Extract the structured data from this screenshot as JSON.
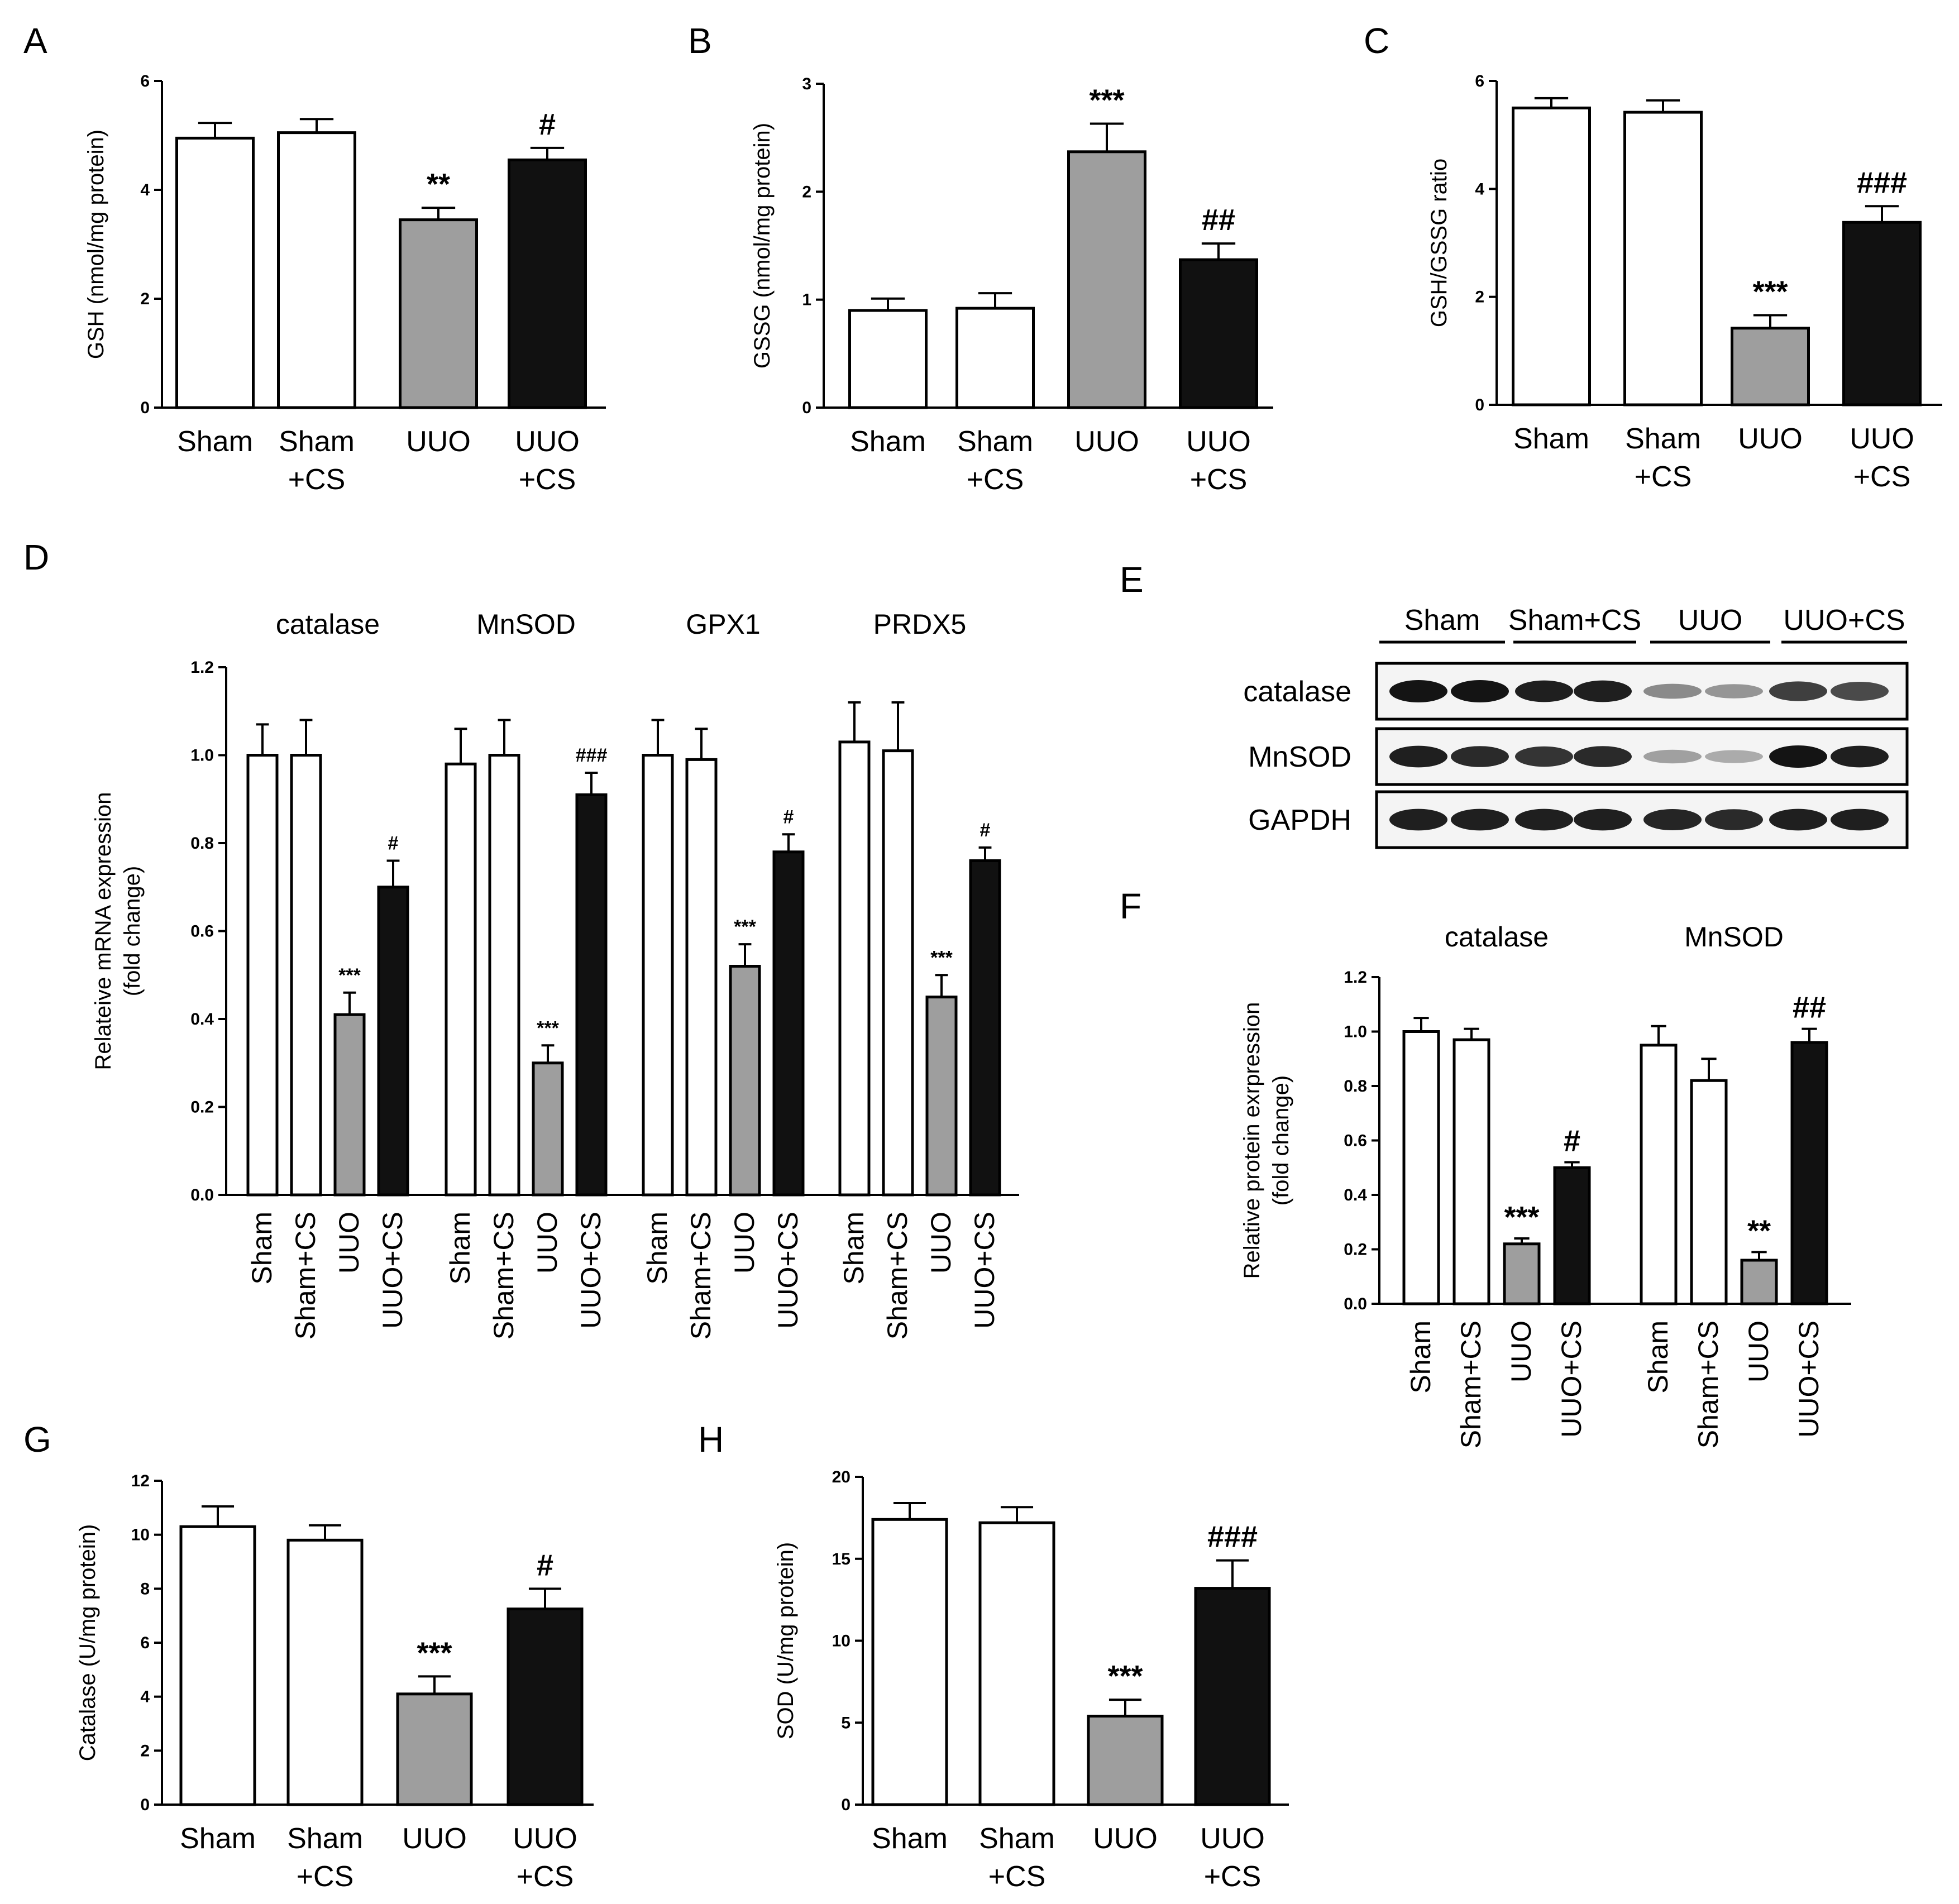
{
  "colors": {
    "Sham": "#ffffff",
    "Sham+CS": "#ffffff",
    "UUO": "#9e9e9e",
    "UUO+CS": "#111111",
    "axis": "#000000"
  },
  "chart_data": [
    {
      "id": "A",
      "letter": "A",
      "type": "bar",
      "categories": [
        "Sham",
        "Sham\n+CS",
        "UUO",
        "UUO\n+CS"
      ],
      "values": [
        4.95,
        5.05,
        3.45,
        4.55
      ],
      "errors": [
        0.28,
        0.25,
        0.22,
        0.22
      ],
      "annotations": [
        "",
        "",
        "**",
        "#"
      ],
      "ylabel": "GSH (nmol/mg protein)",
      "ylim": [
        0,
        6
      ],
      "yticks": [
        "0",
        "2",
        "4",
        "6"
      ]
    },
    {
      "id": "B",
      "letter": "B",
      "type": "bar",
      "categories": [
        "Sham",
        "Sham\n+CS",
        "UUO",
        "UUO\n+CS"
      ],
      "values": [
        0.9,
        0.92,
        2.37,
        1.37
      ],
      "errors": [
        0.11,
        0.14,
        0.26,
        0.15
      ],
      "annotations": [
        "",
        "",
        "***",
        "##"
      ],
      "ylabel": "GSSG (nmol/mg protein)",
      "ylim": [
        0,
        3
      ],
      "yticks": [
        "0",
        "1",
        "2",
        "3"
      ]
    },
    {
      "id": "C",
      "letter": "C",
      "type": "bar",
      "categories": [
        "Sham",
        "Sham\n+CS",
        "UUO",
        "UUO\n+CS"
      ],
      "values": [
        5.5,
        5.42,
        1.42,
        3.38
      ],
      "errors": [
        0.18,
        0.22,
        0.24,
        0.3
      ],
      "annotations": [
        "",
        "",
        "***",
        "###"
      ],
      "ylabel": "GSH/GSSG ratio",
      "ylim": [
        0,
        6
      ],
      "yticks": [
        "0",
        "2",
        "4",
        "6"
      ]
    },
    {
      "id": "D",
      "letter": "D",
      "type": "bar",
      "ylabel": [
        "Relateive mRNA expression",
        "(fold change)"
      ],
      "ylim": [
        0,
        1.2
      ],
      "yticks": [
        "0.0",
        "0.2",
        "0.4",
        "0.6",
        "0.8",
        "1.0",
        "1.2"
      ],
      "categories": [
        "Sham",
        "Sham+CS",
        "UUO",
        "UUO+CS"
      ],
      "groups": [
        {
          "name": "catalase",
          "values": [
            1.0,
            1.0,
            0.41,
            0.7
          ],
          "errors": [
            0.07,
            0.08,
            0.05,
            0.06
          ],
          "annotations": [
            "",
            "",
            "***",
            "#"
          ]
        },
        {
          "name": "MnSOD",
          "values": [
            0.98,
            1.0,
            0.3,
            0.91
          ],
          "errors": [
            0.08,
            0.08,
            0.04,
            0.05
          ],
          "annotations": [
            "",
            "",
            "***",
            "###"
          ]
        },
        {
          "name": "GPX1",
          "values": [
            1.0,
            0.99,
            0.52,
            0.78
          ],
          "errors": [
            0.08,
            0.07,
            0.05,
            0.04
          ],
          "annotations": [
            "",
            "",
            "***",
            "#"
          ]
        },
        {
          "name": "PRDX5",
          "values": [
            1.03,
            1.01,
            0.45,
            0.76
          ],
          "errors": [
            0.09,
            0.11,
            0.05,
            0.03
          ],
          "annotations": [
            "",
            "",
            "***",
            "#"
          ]
        }
      ]
    },
    {
      "id": "F",
      "letter": "F",
      "type": "bar",
      "ylabel": [
        "Relative protein exrpression",
        "(fold change)"
      ],
      "ylim": [
        0,
        1.2
      ],
      "yticks": [
        "0.0",
        "0.2",
        "0.4",
        "0.6",
        "0.8",
        "1.0",
        "1.2"
      ],
      "categories": [
        "Sham",
        "Sham+CS",
        "UUO",
        "UUO+CS"
      ],
      "groups": [
        {
          "name": "catalase",
          "values": [
            1.0,
            0.97,
            0.22,
            0.5
          ],
          "errors": [
            0.05,
            0.04,
            0.02,
            0.02
          ],
          "annotations": [
            "",
            "",
            "***",
            "#"
          ]
        },
        {
          "name": "MnSOD",
          "values": [
            0.95,
            0.82,
            0.16,
            0.96
          ],
          "errors": [
            0.07,
            0.08,
            0.03,
            0.05
          ],
          "annotations": [
            "",
            "",
            "**",
            "##"
          ]
        }
      ]
    },
    {
      "id": "G",
      "letter": "G",
      "type": "bar",
      "categories": [
        "Sham",
        "Sham\n+CS",
        "UUO",
        "UUO\n+CS"
      ],
      "values": [
        10.3,
        9.8,
        4.1,
        7.25
      ],
      "errors": [
        0.75,
        0.55,
        0.65,
        0.75
      ],
      "annotations": [
        "",
        "",
        "***",
        "#"
      ],
      "ylabel": "Catalase (U/mg protein)",
      "ylim": [
        0,
        12
      ],
      "yticks": [
        "0",
        "2",
        "4",
        "6",
        "8",
        "10",
        "12"
      ]
    },
    {
      "id": "H",
      "letter": "H",
      "type": "bar",
      "categories": [
        "Sham",
        "Sham\n+CS",
        "UUO",
        "UUO\n+CS"
      ],
      "values": [
        17.4,
        17.2,
        5.4,
        13.2
      ],
      "errors": [
        1.0,
        0.95,
        1.0,
        1.7
      ],
      "annotations": [
        "",
        "",
        "***",
        "###"
      ],
      "ylabel": "SOD (U/mg protein)",
      "ylim": [
        0,
        20
      ],
      "yticks": [
        "0",
        "5",
        "10",
        "15",
        "20"
      ]
    }
  ],
  "blot": {
    "letter": "E",
    "lanes": [
      "Sham",
      "Sham+CS",
      "UUO",
      "UUO+CS"
    ],
    "rows": [
      {
        "name": "catalase",
        "intensity": [
          1.0,
          1.0,
          0.95,
          0.95,
          0.45,
          0.4,
          0.8,
          0.75
        ]
      },
      {
        "name": "MnSOD",
        "intensity": [
          0.95,
          0.9,
          0.85,
          0.9,
          0.35,
          0.3,
          1.0,
          0.95
        ]
      },
      {
        "name": "GAPDH",
        "intensity": [
          0.95,
          0.95,
          0.95,
          0.95,
          0.92,
          0.9,
          0.95,
          0.95
        ]
      }
    ]
  }
}
